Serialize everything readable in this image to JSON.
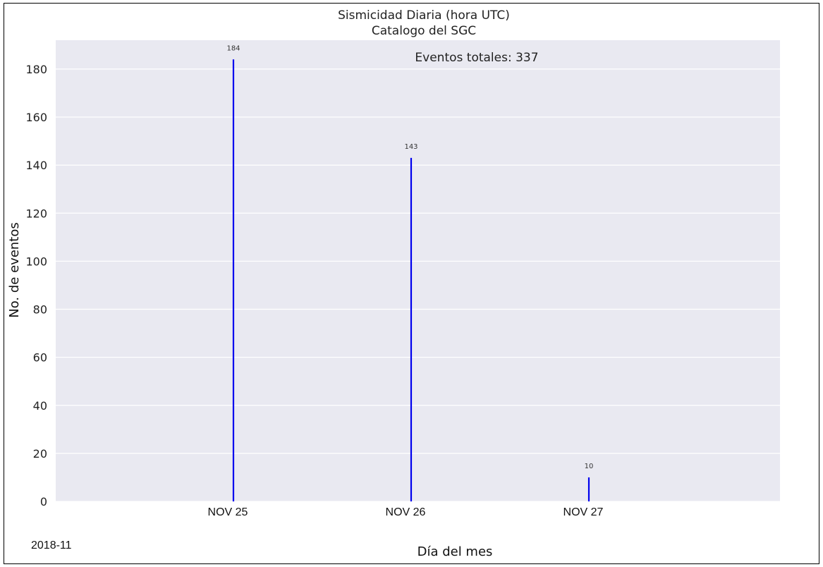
{
  "chart_data": {
    "type": "bar",
    "title": "Sismicidad Diaria (hora UTC)",
    "subtitle": "Catalogo del SGC",
    "categories": [
      "NOV 25",
      "NOV 26",
      "NOV 27"
    ],
    "values": [
      184,
      143,
      10
    ],
    "data_labels": [
      "184",
      "143",
      "10"
    ],
    "xlabel": "Día del mes",
    "ylabel": "No. de eventos",
    "ylim": [
      0,
      192
    ],
    "yticks": [
      0,
      20,
      40,
      60,
      80,
      100,
      120,
      140,
      160,
      180
    ],
    "annotation": "Eventos totales: 337",
    "period_label": "2018-11",
    "grid": true,
    "bar_color": "#0000ee",
    "plot_background": "#e9e9f1",
    "grid_color": "#ffffff"
  }
}
